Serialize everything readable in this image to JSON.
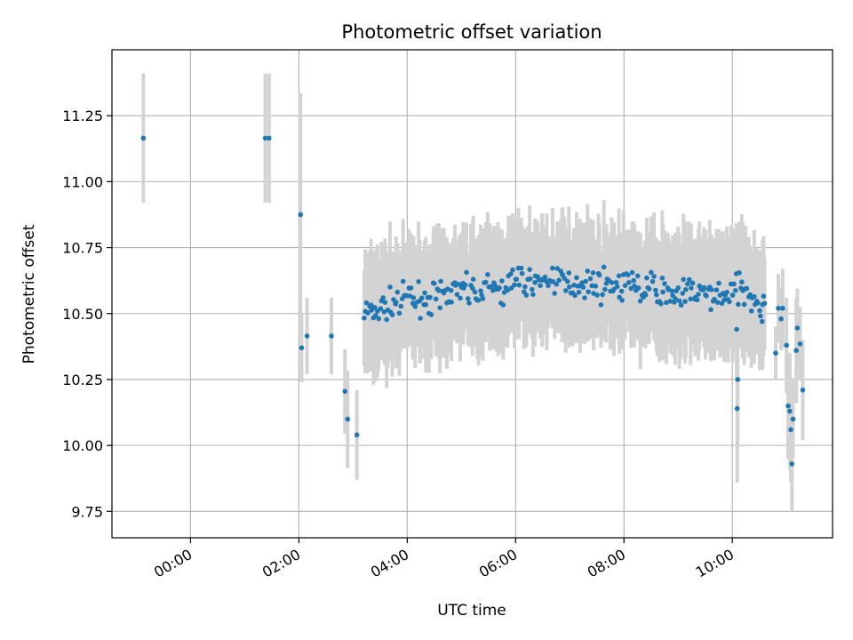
{
  "chart_data": {
    "type": "scatter",
    "title": "Photometric offset variation",
    "xlabel": "UTC time",
    "ylabel": "Photometric offset",
    "x_unit": "UTC hours",
    "xlim": [
      -1.45,
      11.85
    ],
    "ylim": [
      9.65,
      11.5
    ],
    "x_ticks": [
      0,
      2,
      4,
      6,
      8,
      10
    ],
    "x_tick_labels": [
      "00:00",
      "02:00",
      "04:00",
      "06:00",
      "08:00",
      "10:00"
    ],
    "y_ticks": [
      9.75,
      10.0,
      10.25,
      10.5,
      10.75,
      11.0,
      11.25
    ],
    "y_tick_labels": [
      "9.75",
      "10.00",
      "10.25",
      "10.50",
      "10.75",
      "11.00",
      "11.25"
    ],
    "grid": true,
    "legend": "none",
    "colors": {
      "points": "#1f77b4",
      "error_bars": "#d3d3d3",
      "grid": "#b0b0b0"
    },
    "points": [
      {
        "x": -0.87,
        "y": 11.165,
        "err": 0.245
      },
      {
        "x": 1.38,
        "y": 11.165,
        "err": 0.245
      },
      {
        "x": 1.45,
        "y": 11.165,
        "err": 0.245
      },
      {
        "x": 2.03,
        "y": 10.875,
        "err": 0.46
      },
      {
        "x": 2.05,
        "y": 10.37,
        "err": 0.13
      },
      {
        "x": 2.15,
        "y": 10.415,
        "err": 0.145
      },
      {
        "x": 2.6,
        "y": 10.415,
        "err": 0.145
      },
      {
        "x": 2.85,
        "y": 10.205,
        "err": 0.16
      },
      {
        "x": 2.9,
        "y": 10.1,
        "err": 0.185
      },
      {
        "x": 3.07,
        "y": 10.04,
        "err": 0.17
      },
      {
        "x": 10.08,
        "y": 10.44,
        "err": 0.2
      },
      {
        "x": 10.09,
        "y": 10.14,
        "err": 0.28
      },
      {
        "x": 10.1,
        "y": 10.25,
        "err": 0.25
      },
      {
        "x": 10.55,
        "y": 10.47,
        "err": 0.11
      },
      {
        "x": 10.8,
        "y": 10.35,
        "err": 0.1
      },
      {
        "x": 10.85,
        "y": 10.52,
        "err": 0.13
      },
      {
        "x": 10.9,
        "y": 10.48,
        "err": 0.12
      },
      {
        "x": 10.93,
        "y": 10.52,
        "err": 0.15
      },
      {
        "x": 11.0,
        "y": 10.38,
        "err": 0.18
      },
      {
        "x": 11.03,
        "y": 10.15,
        "err": 0.2
      },
      {
        "x": 11.06,
        "y": 10.13,
        "err": 0.22
      },
      {
        "x": 11.08,
        "y": 10.06,
        "err": 0.2
      },
      {
        "x": 11.1,
        "y": 9.93,
        "err": 0.18
      },
      {
        "x": 11.12,
        "y": 10.1,
        "err": 0.15
      },
      {
        "x": 11.18,
        "y": 10.36,
        "err": 0.2
      },
      {
        "x": 11.2,
        "y": 10.445,
        "err": 0.15
      },
      {
        "x": 11.25,
        "y": 10.385,
        "err": 0.14
      },
      {
        "x": 11.3,
        "y": 10.21,
        "err": 0.19
      }
    ],
    "dense_segment": {
      "x_range": [
        3.2,
        10.62
      ],
      "step": 0.025,
      "trend_knots": {
        "x": [
          3.2,
          3.5,
          4.0,
          4.5,
          5.0,
          5.5,
          6.0,
          6.5,
          7.0,
          7.5,
          8.0,
          8.5,
          9.0,
          9.5,
          10.0,
          10.3,
          10.6
        ],
        "y": [
          10.5,
          10.52,
          10.55,
          10.56,
          10.58,
          10.59,
          10.61,
          10.63,
          10.62,
          10.61,
          10.6,
          10.59,
          10.58,
          10.57,
          10.58,
          10.6,
          10.5
        ]
      },
      "scatter_amplitude": 0.045,
      "error_amplitude": [
        0.16,
        0.26
      ]
    }
  }
}
